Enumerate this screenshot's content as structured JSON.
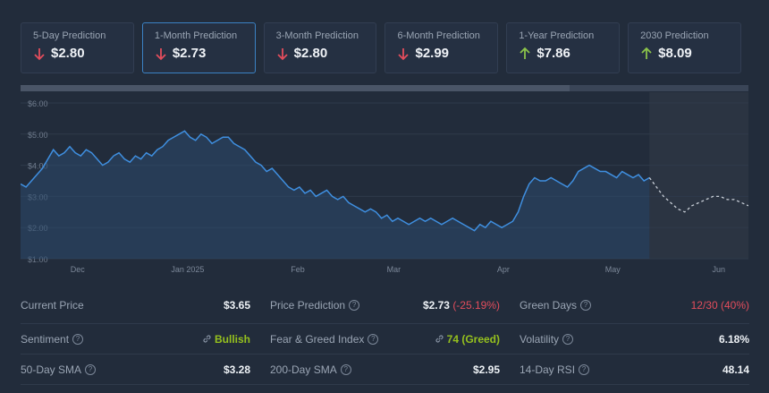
{
  "colors": {
    "down": "#e34d5c",
    "up": "#8bc34a",
    "line": "#3f8fe0",
    "accent_border": "#3b82c4"
  },
  "cards": [
    {
      "label": "5-Day Prediction",
      "value": "$2.80",
      "dir": "down"
    },
    {
      "label": "1-Month Prediction",
      "value": "$2.73",
      "dir": "down",
      "active": true
    },
    {
      "label": "3-Month Prediction",
      "value": "$2.80",
      "dir": "down"
    },
    {
      "label": "6-Month Prediction",
      "value": "$2.99",
      "dir": "down"
    },
    {
      "label": "1-Year Prediction",
      "value": "$7.86",
      "dir": "up"
    },
    {
      "label": "2030 Prediction",
      "value": "$8.09",
      "dir": "up"
    }
  ],
  "chart_data": {
    "type": "line",
    "y_ticks": [
      "$6.00",
      "$5.00",
      "$4.00",
      "$3.00",
      "$2.00",
      "$1.00"
    ],
    "ylim": [
      0.8,
      6.2
    ],
    "x_ticks": [
      "Dec",
      "Jan 2025",
      "Feb",
      "Mar",
      "Apr",
      "May",
      "Jun"
    ],
    "x_tick_values": [
      9.8,
      28.7,
      47.6,
      64.1,
      82.9,
      101.7,
      119.9
    ],
    "xlim": [
      0,
      125
    ],
    "forecast_start": 108,
    "series": [
      {
        "values": [
          3.4,
          3.3,
          3.5,
          3.7,
          3.9,
          4.2,
          4.5,
          4.3,
          4.4,
          4.6,
          4.4,
          4.3,
          4.5,
          4.4,
          4.2,
          4.0,
          4.1,
          4.3,
          4.4,
          4.2,
          4.1,
          4.3,
          4.2,
          4.4,
          4.3,
          4.5,
          4.6,
          4.8,
          4.9,
          5.0,
          5.1,
          4.9,
          4.8,
          5.0,
          4.9,
          4.7,
          4.8,
          4.9,
          4.9,
          4.7,
          4.6,
          4.5,
          4.3,
          4.1,
          4.0,
          3.8,
          3.9,
          3.7,
          3.5,
          3.3,
          3.2,
          3.3,
          3.1,
          3.2,
          3.0,
          3.1,
          3.2,
          3.0,
          2.9,
          3.0,
          2.8,
          2.7,
          2.6,
          2.5,
          2.6,
          2.5,
          2.3,
          2.4,
          2.2,
          2.3,
          2.2,
          2.1,
          2.2,
          2.3,
          2.2,
          2.3,
          2.2,
          2.1,
          2.2,
          2.3,
          2.2,
          2.1,
          2.0,
          1.9,
          2.1,
          2.0,
          2.2,
          2.1,
          2.0,
          2.1,
          2.2,
          2.5,
          3.0,
          3.4,
          3.6,
          3.5,
          3.5,
          3.6,
          3.5,
          3.4,
          3.3,
          3.5,
          3.8,
          3.9,
          4.0,
          3.9,
          3.8,
          3.8,
          3.7,
          3.6,
          3.8,
          3.7,
          3.6,
          3.7,
          3.5,
          3.6
        ]
      },
      {
        "values": [
          3.6,
          3.3,
          3.0,
          2.8,
          2.6,
          2.5,
          2.7,
          2.8,
          2.9,
          3.0,
          3.0,
          2.9,
          2.9,
          2.8,
          2.7
        ]
      }
    ]
  },
  "stats": [
    [
      {
        "key": "Current Price",
        "value": "$3.65",
        "help": false
      },
      {
        "key": "Price Prediction",
        "value": "$2.73",
        "extra": "(-25.19%)",
        "help": true
      },
      {
        "key": "Green Days",
        "value": "12/30 (40%)",
        "help": true,
        "valueColor": "red"
      }
    ],
    [
      {
        "key": "Sentiment",
        "value": "Bullish",
        "help": true,
        "valueColor": "green",
        "link": true
      },
      {
        "key": "Fear & Greed Index",
        "value": "74 (Greed)",
        "help": true,
        "valueColor": "green",
        "link": true
      },
      {
        "key": "Volatility",
        "value": "6.18%",
        "help": true
      }
    ],
    [
      {
        "key": "50-Day SMA",
        "value": "$3.28",
        "help": true
      },
      {
        "key": "200-Day SMA",
        "value": "$2.95",
        "help": true
      },
      {
        "key": "14-Day RSI",
        "value": "48.14",
        "help": true
      }
    ]
  ]
}
